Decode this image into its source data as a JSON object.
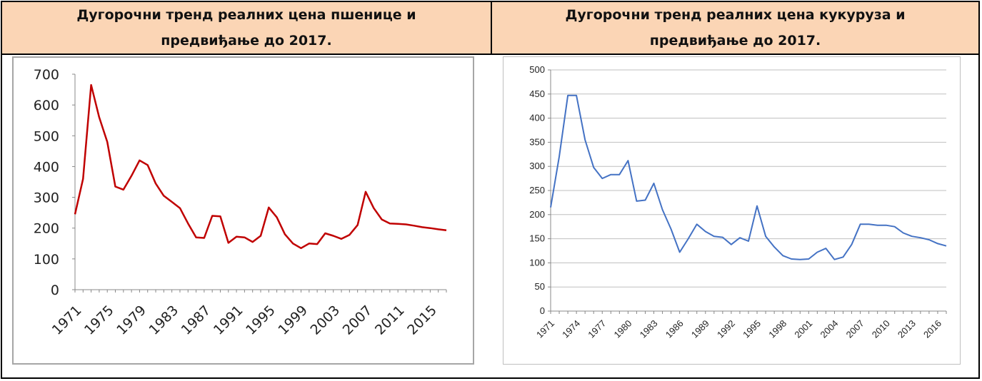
{
  "headers": {
    "left": "Дугорочни тренд реалних цена пшенице и\nпредвиђање до 2017.",
    "right": "Дугорочни тренд реалних цена кукуруза и\nпредвиђање до 2017."
  },
  "colors": {
    "wheat_line": "#c00000",
    "corn_line": "#4472c4",
    "header_bg": "#fbd5b5"
  },
  "chart_data": [
    {
      "type": "line",
      "title": "",
      "xlabel": "",
      "ylabel": "",
      "ylim": [
        0,
        700
      ],
      "yticks": [
        0,
        100,
        200,
        300,
        400,
        500,
        600,
        700
      ],
      "xlim": [
        1971,
        2017
      ],
      "xticks": [
        "1971",
        "1975",
        "1979",
        "1983",
        "1987",
        "1991",
        "1995",
        "1999",
        "2003",
        "2007",
        "2011",
        "2015"
      ],
      "grid": false,
      "series": [
        {
          "x": [
            1971,
            1972,
            1973,
            1974,
            1975,
            1976,
            1977,
            1978,
            1979,
            1980,
            1981,
            1982,
            1983,
            1984,
            1985,
            1986,
            1987,
            1988,
            1989,
            1990,
            1991,
            1992,
            1993,
            1994,
            1995,
            1996,
            1997,
            1998,
            1999,
            2000,
            2001,
            2002,
            2003,
            2004,
            2005,
            2006,
            2007,
            2008,
            2009,
            2010,
            2011,
            2012,
            2013,
            2014,
            2015,
            2016,
            2017
          ],
          "y": [
            245,
            360,
            665,
            560,
            480,
            335,
            325,
            370,
            420,
            405,
            345,
            305,
            285,
            265,
            215,
            170,
            168,
            240,
            238,
            152,
            172,
            170,
            155,
            175,
            267,
            235,
            180,
            150,
            135,
            150,
            148,
            183,
            175,
            165,
            178,
            210,
            318,
            265,
            228,
            215,
            214,
            212,
            208,
            203,
            200,
            196,
            193
          ]
        }
      ]
    },
    {
      "type": "line",
      "title": "",
      "xlabel": "",
      "ylabel": "",
      "ylim": [
        0,
        500
      ],
      "yticks": [
        0,
        50,
        100,
        150,
        200,
        250,
        300,
        350,
        400,
        450,
        500
      ],
      "xlim": [
        1971,
        2017
      ],
      "xticks": [
        "1971",
        "1974",
        "1977",
        "1980",
        "1983",
        "1986",
        "1989",
        "1992",
        "1995",
        "1998",
        "2001",
        "2004",
        "2007",
        "2010",
        "2013",
        "2016"
      ],
      "grid": true,
      "series": [
        {
          "x": [
            1971,
            1972,
            1973,
            1974,
            1975,
            1976,
            1977,
            1978,
            1979,
            1980,
            1981,
            1982,
            1983,
            1984,
            1985,
            1986,
            1987,
            1988,
            1989,
            1990,
            1991,
            1992,
            1993,
            1994,
            1995,
            1996,
            1997,
            1998,
            1999,
            2000,
            2001,
            2002,
            2003,
            2004,
            2005,
            2006,
            2007,
            2008,
            2009,
            2010,
            2011,
            2012,
            2013,
            2014,
            2015,
            2016,
            2017
          ],
          "y": [
            215,
            320,
            447,
            447,
            355,
            298,
            275,
            283,
            283,
            312,
            228,
            230,
            265,
            210,
            170,
            122,
            150,
            180,
            165,
            155,
            153,
            138,
            152,
            145,
            218,
            155,
            133,
            115,
            108,
            107,
            108,
            122,
            130,
            107,
            112,
            138,
            180,
            180,
            178,
            178,
            175,
            162,
            155,
            152,
            148,
            140,
            135
          ]
        }
      ]
    }
  ]
}
